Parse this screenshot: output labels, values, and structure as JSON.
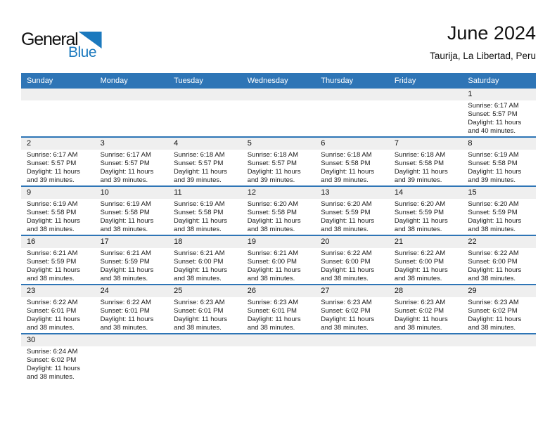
{
  "logo": {
    "general": "General",
    "blue": "Blue"
  },
  "header": {
    "title": "June 2024",
    "subtitle": "Taurija, La Libertad, Peru"
  },
  "weekday_headers": [
    "Sunday",
    "Monday",
    "Tuesday",
    "Wednesday",
    "Thursday",
    "Friday",
    "Saturday"
  ],
  "cell_labels": {
    "sunrise": "Sunrise:",
    "sunset": "Sunset:",
    "daylight": "Daylight:"
  },
  "colors": {
    "header_blue": "#2E75B6",
    "band_grey": "#EFEFEF",
    "logo_blue": "#1B79BE"
  },
  "weeks": [
    [
      null,
      null,
      null,
      null,
      null,
      null,
      {
        "date": "1",
        "sunrise": "6:17 AM",
        "sunset": "5:57 PM",
        "daylight": "11 hours and 40 minutes."
      }
    ],
    [
      {
        "date": "2",
        "sunrise": "6:17 AM",
        "sunset": "5:57 PM",
        "daylight": "11 hours and 39 minutes."
      },
      {
        "date": "3",
        "sunrise": "6:17 AM",
        "sunset": "5:57 PM",
        "daylight": "11 hours and 39 minutes."
      },
      {
        "date": "4",
        "sunrise": "6:18 AM",
        "sunset": "5:57 PM",
        "daylight": "11 hours and 39 minutes."
      },
      {
        "date": "5",
        "sunrise": "6:18 AM",
        "sunset": "5:57 PM",
        "daylight": "11 hours and 39 minutes."
      },
      {
        "date": "6",
        "sunrise": "6:18 AM",
        "sunset": "5:58 PM",
        "daylight": "11 hours and 39 minutes."
      },
      {
        "date": "7",
        "sunrise": "6:18 AM",
        "sunset": "5:58 PM",
        "daylight": "11 hours and 39 minutes."
      },
      {
        "date": "8",
        "sunrise": "6:19 AM",
        "sunset": "5:58 PM",
        "daylight": "11 hours and 39 minutes."
      }
    ],
    [
      {
        "date": "9",
        "sunrise": "6:19 AM",
        "sunset": "5:58 PM",
        "daylight": "11 hours and 38 minutes."
      },
      {
        "date": "10",
        "sunrise": "6:19 AM",
        "sunset": "5:58 PM",
        "daylight": "11 hours and 38 minutes."
      },
      {
        "date": "11",
        "sunrise": "6:19 AM",
        "sunset": "5:58 PM",
        "daylight": "11 hours and 38 minutes."
      },
      {
        "date": "12",
        "sunrise": "6:20 AM",
        "sunset": "5:58 PM",
        "daylight": "11 hours and 38 minutes."
      },
      {
        "date": "13",
        "sunrise": "6:20 AM",
        "sunset": "5:59 PM",
        "daylight": "11 hours and 38 minutes."
      },
      {
        "date": "14",
        "sunrise": "6:20 AM",
        "sunset": "5:59 PM",
        "daylight": "11 hours and 38 minutes."
      },
      {
        "date": "15",
        "sunrise": "6:20 AM",
        "sunset": "5:59 PM",
        "daylight": "11 hours and 38 minutes."
      }
    ],
    [
      {
        "date": "16",
        "sunrise": "6:21 AM",
        "sunset": "5:59 PM",
        "daylight": "11 hours and 38 minutes."
      },
      {
        "date": "17",
        "sunrise": "6:21 AM",
        "sunset": "5:59 PM",
        "daylight": "11 hours and 38 minutes."
      },
      {
        "date": "18",
        "sunrise": "6:21 AM",
        "sunset": "6:00 PM",
        "daylight": "11 hours and 38 minutes."
      },
      {
        "date": "19",
        "sunrise": "6:21 AM",
        "sunset": "6:00 PM",
        "daylight": "11 hours and 38 minutes."
      },
      {
        "date": "20",
        "sunrise": "6:22 AM",
        "sunset": "6:00 PM",
        "daylight": "11 hours and 38 minutes."
      },
      {
        "date": "21",
        "sunrise": "6:22 AM",
        "sunset": "6:00 PM",
        "daylight": "11 hours and 38 minutes."
      },
      {
        "date": "22",
        "sunrise": "6:22 AM",
        "sunset": "6:00 PM",
        "daylight": "11 hours and 38 minutes."
      }
    ],
    [
      {
        "date": "23",
        "sunrise": "6:22 AM",
        "sunset": "6:01 PM",
        "daylight": "11 hours and 38 minutes."
      },
      {
        "date": "24",
        "sunrise": "6:22 AM",
        "sunset": "6:01 PM",
        "daylight": "11 hours and 38 minutes."
      },
      {
        "date": "25",
        "sunrise": "6:23 AM",
        "sunset": "6:01 PM",
        "daylight": "11 hours and 38 minutes."
      },
      {
        "date": "26",
        "sunrise": "6:23 AM",
        "sunset": "6:01 PM",
        "daylight": "11 hours and 38 minutes."
      },
      {
        "date": "27",
        "sunrise": "6:23 AM",
        "sunset": "6:02 PM",
        "daylight": "11 hours and 38 minutes."
      },
      {
        "date": "28",
        "sunrise": "6:23 AM",
        "sunset": "6:02 PM",
        "daylight": "11 hours and 38 minutes."
      },
      {
        "date": "29",
        "sunrise": "6:23 AM",
        "sunset": "6:02 PM",
        "daylight": "11 hours and 38 minutes."
      }
    ],
    [
      {
        "date": "30",
        "sunrise": "6:24 AM",
        "sunset": "6:02 PM",
        "daylight": "11 hours and 38 minutes."
      },
      null,
      null,
      null,
      null,
      null,
      null
    ]
  ]
}
